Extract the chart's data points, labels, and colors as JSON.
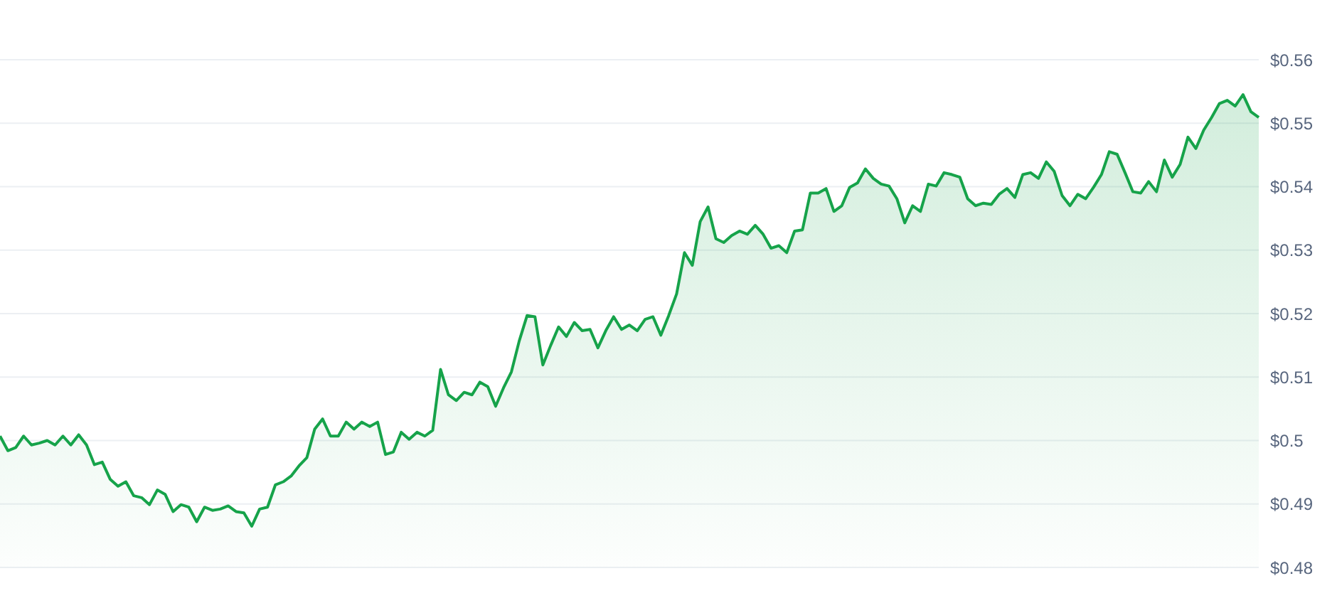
{
  "chart_data": {
    "type": "area",
    "categories": [
      null,
      null,
      null,
      null,
      null,
      null,
      null,
      null,
      null,
      null,
      null,
      null,
      null,
      null,
      null,
      null,
      null,
      null,
      null,
      null,
      null,
      null,
      null,
      null,
      null,
      null,
      null,
      null,
      null,
      null,
      null,
      null,
      null,
      null,
      null,
      null,
      null,
      null,
      null,
      null,
      null,
      null,
      null,
      null,
      null,
      null,
      null,
      null,
      null,
      null,
      null,
      null,
      null,
      null,
      null,
      null,
      null,
      null,
      null,
      null,
      null,
      null,
      null,
      null,
      null,
      null,
      null,
      null,
      null,
      null,
      null,
      null,
      null,
      null,
      null,
      null,
      null,
      null,
      null,
      null,
      null,
      null,
      null,
      null,
      null,
      null,
      null,
      null,
      null,
      null,
      null,
      null,
      null,
      null,
      null,
      null,
      null,
      null,
      null,
      null,
      null,
      null,
      null,
      null,
      null,
      null,
      null,
      null,
      null,
      null,
      null,
      null,
      null,
      null,
      null,
      null,
      null,
      null,
      null,
      null,
      null,
      null,
      null,
      null,
      null,
      null,
      null,
      null,
      null,
      null,
      null,
      null,
      null,
      null,
      null,
      null,
      null,
      null,
      null,
      null,
      null,
      null,
      null,
      null,
      null,
      null,
      null,
      null,
      null,
      null,
      null,
      null,
      null,
      null,
      null,
      null,
      null,
      null,
      null,
      null,
      null
    ],
    "values": [
      0.5007,
      0.4984,
      0.4989,
      0.5007,
      0.4993,
      0.4996,
      0.5,
      0.4993,
      0.5007,
      0.4993,
      0.5009,
      0.4993,
      0.4962,
      0.4966,
      0.4939,
      0.4928,
      0.4935,
      0.4913,
      0.491,
      0.4899,
      0.4922,
      0.4915,
      0.4888,
      0.4899,
      0.4895,
      0.4872,
      0.4895,
      0.489,
      0.4892,
      0.4897,
      0.4888,
      0.4886,
      0.4865,
      0.4892,
      0.4895,
      0.493,
      0.4935,
      0.4944,
      0.496,
      0.4973,
      0.5018,
      0.5034,
      0.5007,
      0.5007,
      0.5029,
      0.5018,
      0.5029,
      0.5022,
      0.5029,
      0.4978,
      0.4982,
      0.5013,
      0.5002,
      0.5013,
      0.5007,
      0.5016,
      0.5112,
      0.5072,
      0.5063,
      0.5076,
      0.5072,
      0.5092,
      0.5085,
      0.5054,
      0.5083,
      0.5108,
      0.5157,
      0.5197,
      0.5195,
      0.5119,
      0.515,
      0.5179,
      0.5164,
      0.5186,
      0.5173,
      0.5175,
      0.5146,
      0.5173,
      0.5195,
      0.5175,
      0.5182,
      0.5173,
      0.5191,
      0.5195,
      0.5166,
      0.5197,
      0.5231,
      0.5296,
      0.5276,
      0.5345,
      0.5368,
      0.5318,
      0.5312,
      0.5323,
      0.533,
      0.5325,
      0.5339,
      0.5325,
      0.5303,
      0.5307,
      0.5296,
      0.533,
      0.5332,
      0.539,
      0.539,
      0.5397,
      0.5361,
      0.537,
      0.5399,
      0.5406,
      0.5428,
      0.5413,
      0.5404,
      0.5401,
      0.5381,
      0.5343,
      0.537,
      0.5361,
      0.5404,
      0.5401,
      0.5422,
      0.5419,
      0.5415,
      0.5381,
      0.537,
      0.5374,
      0.5372,
      0.5388,
      0.5397,
      0.5383,
      0.5419,
      0.5422,
      0.5413,
      0.5439,
      0.5424,
      0.5386,
      0.537,
      0.5388,
      0.5381,
      0.5399,
      0.5419,
      0.5455,
      0.5451,
      0.5422,
      0.5392,
      0.539,
      0.5408,
      0.5392,
      0.5442,
      0.5415,
      0.5435,
      0.5478,
      0.546,
      0.5489,
      0.5509,
      0.5531,
      0.5536,
      0.5527,
      0.5545,
      0.5518,
      0.5509
    ],
    "color": "#16a34a",
    "ylim": [
      0.48,
      0.56
    ],
    "yticks": [
      {
        "value": 0.48,
        "label": "$0.48"
      },
      {
        "value": 0.49,
        "label": "$0.49"
      },
      {
        "value": 0.5,
        "label": "$0.5"
      },
      {
        "value": 0.51,
        "label": "$0.51"
      },
      {
        "value": 0.52,
        "label": "$0.52"
      },
      {
        "value": 0.53,
        "label": "$0.53"
      },
      {
        "value": 0.54,
        "label": "$0.54"
      },
      {
        "value": 0.55,
        "label": "$0.55"
      },
      {
        "value": 0.56,
        "label": "$0.56"
      }
    ],
    "grid": "y",
    "tick_labels": "y"
  }
}
